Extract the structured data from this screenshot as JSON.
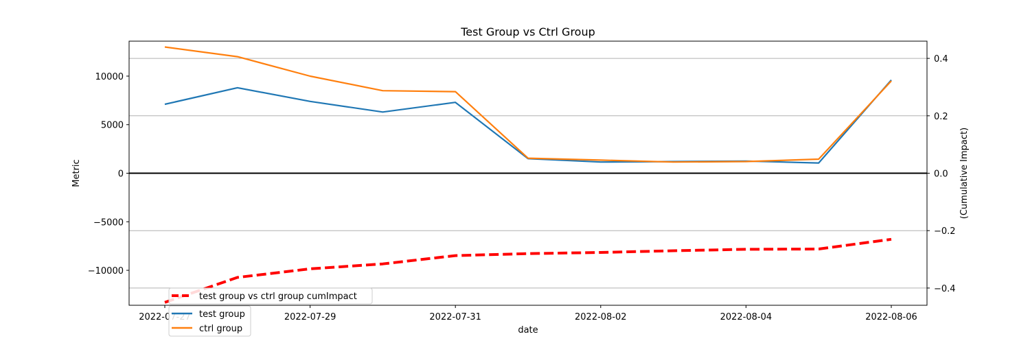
{
  "chart_data": {
    "type": "line",
    "title": "Test Group vs Ctrl Group",
    "xlabel": "date",
    "ylabel": "Metric",
    "y2label": "(Cumulative Impact)",
    "x": [
      "2022-07-27",
      "2022-07-28",
      "2022-07-29",
      "2022-07-30",
      "2022-07-31",
      "2022-08-01",
      "2022-08-02",
      "2022-08-03",
      "2022-08-04",
      "2022-08-05",
      "2022-08-06"
    ],
    "xtick_labels": [
      "2022-07-27",
      "2022-07-29",
      "2022-07-31",
      "2022-08-02",
      "2022-08-04",
      "2022-08-06"
    ],
    "ylim": [
      -13600,
      13600
    ],
    "yticks": [
      -10000,
      -5000,
      0,
      5000,
      10000
    ],
    "ytick_labels": [
      "−10000",
      "−5000",
      "0",
      "5000",
      "10000"
    ],
    "y2lim": [
      -0.46,
      0.46
    ],
    "y2ticks": [
      -0.4,
      -0.2,
      0.0,
      0.2,
      0.4
    ],
    "y2tick_labels": [
      "−0.4",
      "−0.2",
      "0.0",
      "0.2",
      "0.4"
    ],
    "grid": "right axis horizontal",
    "legend_upper": "lower-left",
    "legend_lower": "lower-left",
    "series": [
      {
        "name": "test group",
        "axis": "left",
        "color": "#1f77b4",
        "style": "solid",
        "values": [
          7100,
          8800,
          7400,
          6300,
          7300,
          1500,
          1150,
          1200,
          1250,
          1050,
          9600
        ]
      },
      {
        "name": "ctrl group",
        "axis": "left",
        "color": "#ff7f0e",
        "style": "solid",
        "values": [
          13000,
          12000,
          10000,
          8500,
          8400,
          1550,
          1350,
          1150,
          1200,
          1450,
          9500
        ]
      },
      {
        "name": "test group vs ctrl group cumImpact",
        "axis": "right",
        "color": "#ff0000",
        "style": "dashed",
        "values": [
          -0.45,
          -0.363,
          -0.333,
          -0.316,
          -0.287,
          -0.28,
          -0.276,
          -0.27,
          -0.265,
          -0.264,
          -0.23
        ]
      }
    ],
    "zero_line_color": "#000000"
  }
}
